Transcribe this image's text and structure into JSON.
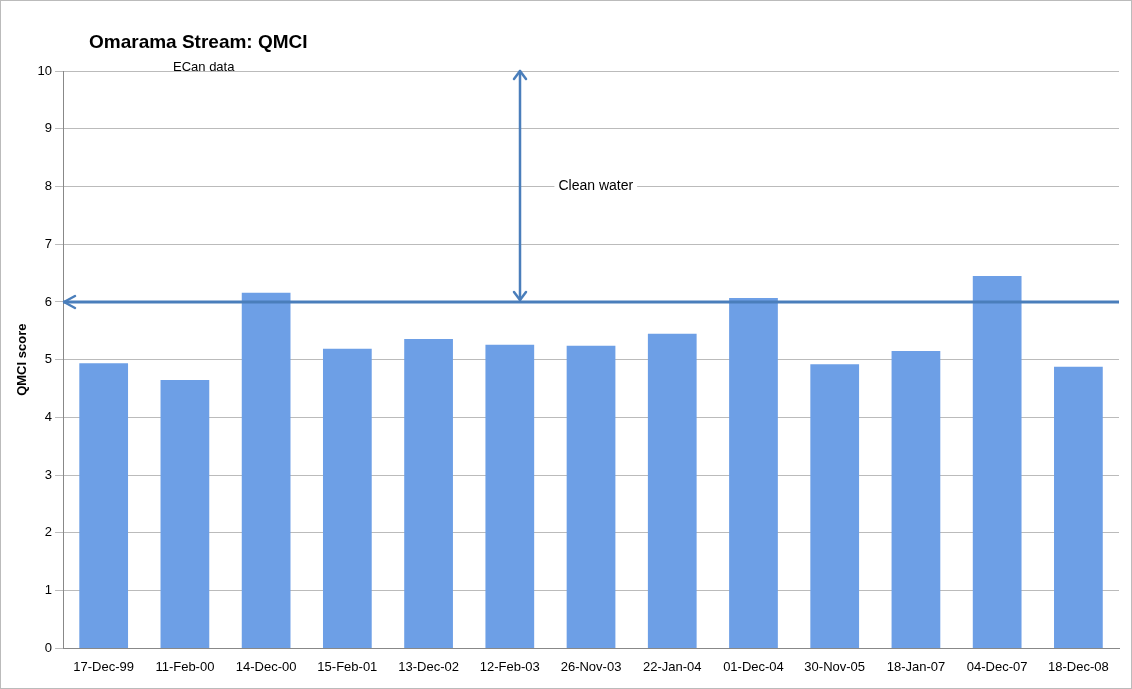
{
  "chart_data": {
    "type": "bar",
    "title": "Omarama Stream: QMCI",
    "subtitle": "ECan data",
    "ylabel": "QMCI score",
    "categories": [
      "17-Dec-99",
      "11-Feb-00",
      "14-Dec-00",
      "15-Feb-01",
      "13-Dec-02",
      "12-Feb-03",
      "26-Nov-03",
      "22-Jan-04",
      "01-Dec-04",
      "30-Nov-05",
      "18-Jan-07",
      "04-Dec-07",
      "18-Dec-08"
    ],
    "values": [
      4.94,
      4.65,
      6.16,
      5.19,
      5.36,
      5.26,
      5.24,
      5.45,
      6.07,
      4.92,
      5.15,
      6.45,
      4.88
    ],
    "color": "#6d9fe6",
    "ylim": [
      0,
      10
    ],
    "yticks": [
      0,
      1,
      2,
      3,
      4,
      5,
      6,
      7,
      8,
      9,
      10
    ],
    "grid": "y",
    "legend": false,
    "ref_lines": [
      {
        "axis": "y",
        "value": 6,
        "color": "#4a7ebb"
      }
    ],
    "annotations": [
      "Clean water"
    ]
  }
}
